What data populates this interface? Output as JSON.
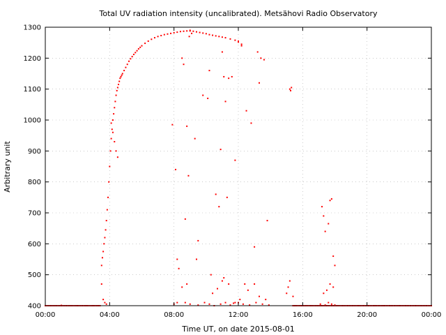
{
  "chart_data": {
    "type": "scatter",
    "title": "Total UV radiation intensity (uncalibrated). Metsähovi Radio Observatory",
    "xlabel": "Time UT, on date 2015-08-01",
    "ylabel": "Arbitrary unit",
    "xlim": [
      0,
      24
    ],
    "ylim": [
      400,
      1300
    ],
    "x_ticks": [
      {
        "value": 0,
        "label": "00:00"
      },
      {
        "value": 4,
        "label": "04:00"
      },
      {
        "value": 8,
        "label": "08:00"
      },
      {
        "value": 12,
        "label": "12:00"
      },
      {
        "value": 16,
        "label": "16:00"
      },
      {
        "value": 20,
        "label": "20:00"
      },
      {
        "value": 24,
        "label": "00:00"
      }
    ],
    "y_ticks": [
      400,
      500,
      600,
      700,
      800,
      900,
      1000,
      1100,
      1200,
      1300
    ],
    "grid": true,
    "grid_style": "dotted",
    "point_color": "#ff0000",
    "series": [
      {
        "x": [
          3.5,
          3.55,
          3.6,
          3.65,
          3.7,
          3.75,
          3.8,
          3.85,
          3.9,
          3.95,
          4.0,
          4.05,
          4.1,
          4.15,
          4.2,
          4.25,
          4.3,
          4.35,
          4.4,
          4.45,
          4.5,
          4.55,
          4.6,
          4.65,
          4.7,
          4.75,
          4.8,
          4.9,
          5.0,
          5.1,
          5.2,
          5.3,
          5.4,
          5.5,
          5.6,
          5.7,
          5.8,
          5.9,
          6.0,
          6.2,
          6.4,
          6.6,
          6.8,
          7.0,
          7.2,
          7.4,
          7.6,
          7.8,
          8.0,
          8.2,
          8.4,
          8.6,
          8.8,
          9.0,
          9.2,
          9.4,
          9.6,
          9.8,
          10.0,
          10.2,
          10.4,
          10.6,
          10.8,
          11.0,
          11.2,
          11.5,
          11.8,
          12.0,
          12.2
        ],
        "y": [
          530,
          555,
          575,
          600,
          620,
          645,
          675,
          710,
          750,
          800,
          850,
          900,
          940,
          970,
          1000,
          1020,
          1040,
          1060,
          1080,
          1095,
          1105,
          1115,
          1125,
          1135,
          1140,
          1145,
          1150,
          1160,
          1170,
          1180,
          1190,
          1198,
          1205,
          1212,
          1218,
          1224,
          1230,
          1235,
          1240,
          1248,
          1255,
          1261,
          1266,
          1270,
          1273,
          1276,
          1278,
          1280,
          1282,
          1284,
          1286,
          1287,
          1288,
          1288,
          1287,
          1285,
          1283,
          1281,
          1279,
          1276,
          1274,
          1272,
          1270,
          1268,
          1266,
          1262,
          1258,
          1252,
          1245
        ]
      },
      {
        "x": [
          3.5,
          3.6,
          3.7,
          3.8,
          4.1,
          4.2,
          4.3,
          4.4,
          4.5,
          7.9,
          8.1,
          8.2,
          8.5,
          8.6,
          8.7,
          8.8,
          8.9,
          8.95,
          9.0,
          9.1,
          9.3,
          9.5,
          9.8,
          10.1,
          10.2,
          10.3,
          10.6,
          10.8,
          10.9,
          11.0,
          11.1,
          11.2,
          11.3,
          11.4,
          11.6,
          11.8,
          12.0,
          12.2,
          12.5,
          12.8,
          13.0,
          13.2,
          13.3,
          13.4,
          13.6,
          13.8,
          15.2,
          15.25,
          15.3,
          17.2,
          17.3,
          17.4,
          17.6,
          17.7,
          17.8,
          17.9,
          18.0,
          8.3,
          8.5,
          8.8,
          9.4,
          10.4,
          10.7,
          11.0,
          11.1,
          11.4,
          11.8,
          12.1,
          12.4,
          12.6,
          13.0,
          13.3,
          13.7,
          15.0,
          15.1,
          15.4,
          17.3,
          17.5,
          17.7,
          17.9,
          8.0,
          8.2,
          8.7,
          9.0,
          9.5,
          9.9,
          10.2,
          10.5,
          10.9,
          11.2,
          11.5,
          11.7,
          12.0,
          12.3,
          12.7,
          13.1,
          13.5,
          13.9,
          15.2,
          17.1,
          17.4,
          17.6,
          17.8,
          18.0
        ],
        "y": [
          470,
          420,
          410,
          405,
          990,
          960,
          930,
          900,
          880,
          985,
          840,
          550,
          1200,
          1180,
          680,
          980,
          820,
          1270,
          1290,
          1280,
          940,
          610,
          1080,
          1070,
          1160,
          500,
          760,
          720,
          905,
          1220,
          1140,
          1060,
          750,
          1135,
          1140,
          870,
          1255,
          1240,
          1030,
          990,
          590,
          1220,
          1120,
          1200,
          1195,
          675,
          1100,
          1095,
          1105,
          720,
          690,
          640,
          665,
          740,
          745,
          560,
          530,
          520,
          460,
          470,
          550,
          440,
          455,
          480,
          490,
          470,
          410,
          420,
          470,
          450,
          470,
          430,
          420,
          440,
          460,
          430,
          440,
          450,
          470,
          460,
          405,
          410,
          410,
          405,
          402,
          410,
          405,
          400,
          405,
          410,
          402,
          408,
          410,
          405,
          402,
          410,
          405,
          402,
          480,
          405,
          402,
          410,
          405,
          402
        ]
      },
      {
        "x": [
          0,
          0.5,
          1,
          1.5,
          2,
          2.5,
          3,
          3.3,
          15.5,
          16,
          16.5,
          17,
          18.5,
          19,
          19.5,
          20,
          20.5,
          21,
          21.5,
          22,
          22.5,
          23,
          23.5,
          24
        ],
        "y": [
          400,
          400,
          401,
          400,
          400,
          400,
          400,
          400,
          400,
          400,
          400,
          400,
          400,
          400,
          400,
          400,
          400,
          400,
          400,
          400,
          400,
          400,
          400,
          400
        ]
      }
    ]
  }
}
